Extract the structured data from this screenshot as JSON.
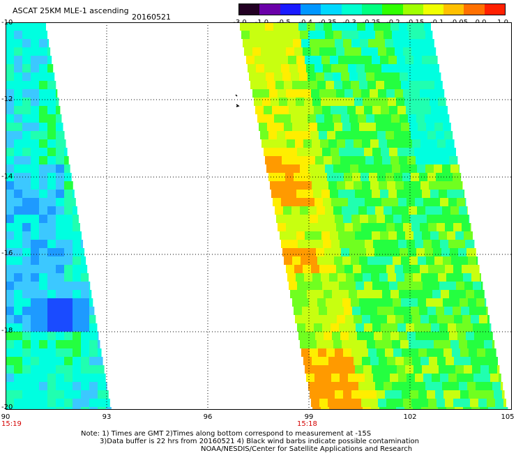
{
  "header": {
    "title": "ASCAT 25KM MLE-1 ascending",
    "date": "20160521"
  },
  "colorbar": {
    "labels": [
      "-3.0",
      "-1.0",
      "-0.5",
      "-0.4",
      "-0.35",
      "-0.3",
      "-0.25",
      "-0.2",
      "-0.15",
      "-0.1",
      "-0.05",
      "0.0",
      "1.0"
    ],
    "colors": [
      "#220022",
      "#6a00a8",
      "#1a1aff",
      "#0096ff",
      "#00d8ff",
      "#00ffd0",
      "#00ff80",
      "#30ff00",
      "#a0ff00",
      "#f0ff00",
      "#ffc000",
      "#ff7000",
      "#ff2000"
    ]
  },
  "map": {
    "lat_ticks": [
      "-10",
      "-12",
      "-14",
      "-16",
      "-18",
      "-20"
    ],
    "lon_ticks": [
      "90",
      "93",
      "96",
      "99",
      "102",
      "105"
    ],
    "swath_times": [
      "15:19",
      "15:18"
    ],
    "lon_range": [
      90,
      105
    ],
    "lat_range": [
      -20,
      -10
    ],
    "palette": {
      "deep_blue": "#1a4bff",
      "blue": "#1e9aff",
      "light_blue": "#3cc8ff",
      "cyan": "#00ffe0",
      "teal": "#20ffb0",
      "green": "#24ff40",
      "light_green": "#70ff20",
      "yellow_green": "#c8ff10",
      "yellow": "#ffee00",
      "orange": "#ff9a00"
    }
  },
  "footer": {
    "note_line1": "Note: 1) Times are GMT 2)Times along bottom correspond to measurement at -15S",
    "note_line2": "3)Data buffer is 22 hrs from 20160521 4) Black wind barbs indicate possible contamination",
    "credit": "NOAA/NESDIS/Center for Satellite Applications and Research"
  }
}
